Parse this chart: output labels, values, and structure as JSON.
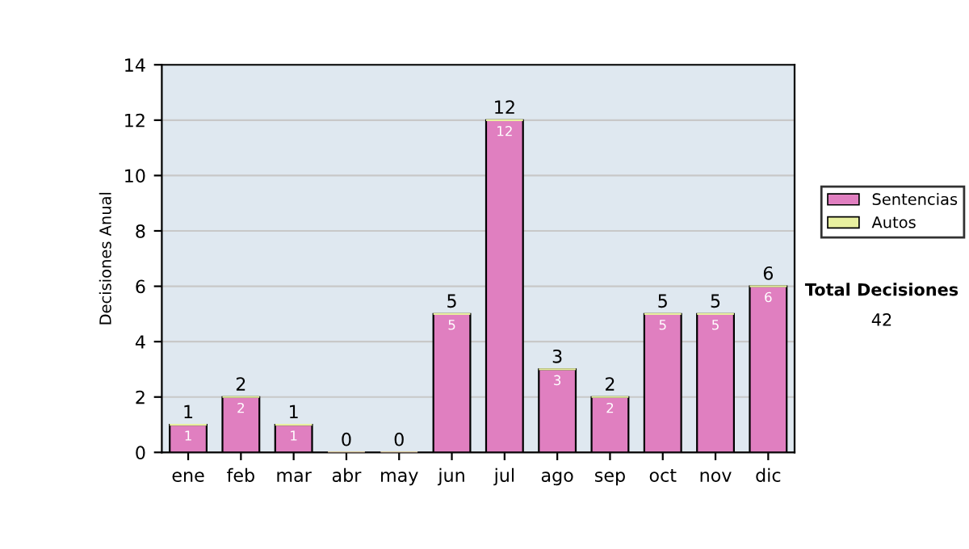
{
  "chart_data": {
    "type": "bar",
    "ylabel": "Decisiones Anual",
    "categories": [
      "ene",
      "feb",
      "mar",
      "abr",
      "may",
      "jun",
      "jul",
      "ago",
      "sep",
      "oct",
      "nov",
      "dic"
    ],
    "series": [
      {
        "name": "Sentencias",
        "color": "#e07fc0",
        "values": [
          1,
          2,
          1,
          0,
          0,
          5,
          12,
          3,
          2,
          5,
          5,
          6
        ],
        "value_labels": [
          "1",
          "2",
          "1",
          null,
          null,
          "5",
          "12",
          "3",
          "2",
          "5",
          "5",
          "6"
        ]
      },
      {
        "name": "Autos",
        "color": "#e8f0a0",
        "values": [
          0,
          0,
          0,
          0,
          0,
          0,
          0,
          0,
          0,
          0,
          0,
          0
        ],
        "value_labels": [
          null,
          null,
          null,
          null,
          null,
          null,
          null,
          null,
          null,
          null,
          null,
          null
        ]
      }
    ],
    "stacked": true,
    "totals": [
      "1",
      "2",
      "1",
      "0",
      "0",
      "5",
      "12",
      "3",
      "2",
      "5",
      "5",
      "6"
    ],
    "ylim": [
      0,
      14
    ],
    "yticks": [
      0,
      2,
      4,
      6,
      8,
      10,
      12,
      14
    ],
    "grid": "y",
    "legend": "right",
    "annotations": [
      "Total Decisiones",
      "42"
    ]
  }
}
